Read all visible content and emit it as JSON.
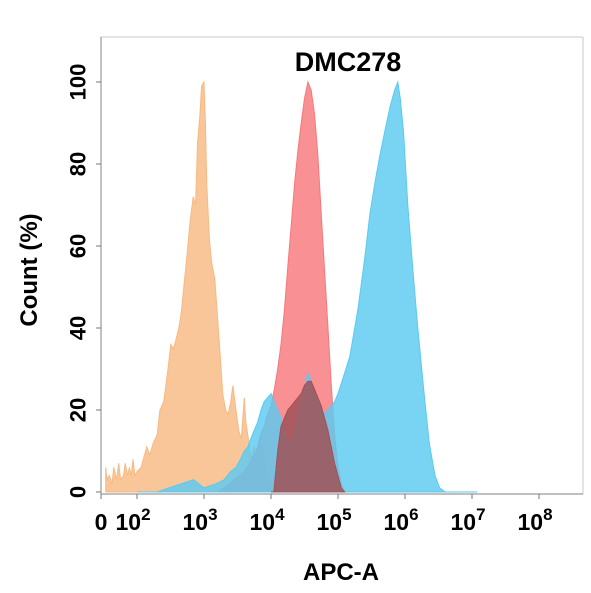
{
  "chart_data": {
    "type": "area",
    "title": "DMC278",
    "xlabel": "APC-A",
    "ylabel": "Count  (%)",
    "x_scale": "log",
    "xlim": [
      0,
      100000000
    ],
    "ylim": [
      0,
      110
    ],
    "y_ticks": [
      "0",
      "20",
      "40",
      "60",
      "80",
      "100"
    ],
    "x_ticks": [
      {
        "value": 0,
        "base": "0",
        "exp": ""
      },
      {
        "value": 100,
        "base": "10",
        "exp": "2"
      },
      {
        "value": 1000,
        "base": "10",
        "exp": "3"
      },
      {
        "value": 10000,
        "base": "10",
        "exp": "4"
      },
      {
        "value": 100000,
        "base": "10",
        "exp": "5"
      },
      {
        "value": 1000000,
        "base": "10",
        "exp": "6"
      },
      {
        "value": 10000000,
        "base": "10",
        "exp": "7"
      },
      {
        "value": 100000000,
        "base": "10",
        "exp": "8"
      }
    ],
    "legend": "none",
    "grid": false,
    "series": [
      {
        "color": "#f8b982",
        "points": [
          [
            10,
            6
          ],
          [
            11,
            3
          ],
          [
            13,
            4
          ],
          [
            16,
            2
          ],
          [
            18,
            6
          ],
          [
            22,
            3
          ],
          [
            26,
            7
          ],
          [
            30,
            3
          ],
          [
            37,
            4
          ],
          [
            42,
            7
          ],
          [
            50,
            4
          ],
          [
            57,
            6
          ],
          [
            65,
            4
          ],
          [
            75,
            8
          ],
          [
            85,
            4
          ],
          [
            100,
            5
          ],
          [
            115,
            6
          ],
          [
            140,
            11
          ],
          [
            155,
            9
          ],
          [
            175,
            12
          ],
          [
            200,
            14
          ],
          [
            220,
            20
          ],
          [
            250,
            22
          ],
          [
            290,
            30
          ],
          [
            320,
            36
          ],
          [
            350,
            35
          ],
          [
            380,
            37
          ],
          [
            420,
            40
          ],
          [
            460,
            44
          ],
          [
            500,
            50
          ],
          [
            560,
            58
          ],
          [
            620,
            66
          ],
          [
            690,
            72
          ],
          [
            750,
            70
          ],
          [
            800,
            85
          ],
          [
            870,
            92
          ],
          [
            920,
            99
          ],
          [
            1000,
            100
          ],
          [
            1050,
            90
          ],
          [
            1100,
            75
          ],
          [
            1200,
            62
          ],
          [
            1300,
            56
          ],
          [
            1450,
            52
          ],
          [
            1600,
            42
          ],
          [
            1750,
            33
          ],
          [
            1900,
            24
          ],
          [
            2100,
            20
          ],
          [
            2300,
            19
          ],
          [
            2500,
            22
          ],
          [
            2700,
            26
          ],
          [
            3000,
            20
          ],
          [
            3300,
            15
          ],
          [
            3600,
            13
          ],
          [
            4000,
            23
          ],
          [
            4200,
            17
          ],
          [
            4600,
            13
          ],
          [
            5000,
            8
          ],
          [
            5600,
            11
          ],
          [
            6300,
            9
          ],
          [
            7000,
            13
          ],
          [
            7600,
            11
          ],
          [
            8500,
            4
          ],
          [
            10000,
            2
          ],
          [
            13000,
            0
          ]
        ]
      },
      {
        "color": "#f6787c",
        "points": [
          [
            1000,
            0
          ],
          [
            1600,
            0
          ],
          [
            2000,
            1
          ],
          [
            2400,
            2
          ],
          [
            2800,
            3
          ],
          [
            3400,
            4
          ],
          [
            4000,
            5
          ],
          [
            4800,
            7
          ],
          [
            5600,
            9
          ],
          [
            6300,
            11
          ],
          [
            7000,
            14
          ],
          [
            7900,
            16
          ],
          [
            8900,
            19
          ],
          [
            10000,
            21
          ],
          [
            11200,
            25
          ],
          [
            12600,
            30
          ],
          [
            14100,
            36
          ],
          [
            15800,
            44
          ],
          [
            17800,
            55
          ],
          [
            20000,
            65
          ],
          [
            22400,
            75
          ],
          [
            25100,
            83
          ],
          [
            28200,
            90
          ],
          [
            31600,
            96
          ],
          [
            35500,
            100
          ],
          [
            39800,
            98
          ],
          [
            44700,
            92
          ],
          [
            50100,
            82
          ],
          [
            56200,
            68
          ],
          [
            63100,
            54
          ],
          [
            70800,
            40
          ],
          [
            79400,
            26
          ],
          [
            89100,
            14
          ],
          [
            100000,
            6
          ],
          [
            112000,
            2
          ],
          [
            125900,
            0
          ]
        ]
      },
      {
        "color": "#5cc9f0",
        "points": [
          [
            100,
            0
          ],
          [
            200,
            0
          ],
          [
            300,
            1
          ],
          [
            450,
            2
          ],
          [
            700,
            3
          ],
          [
            1000,
            1
          ],
          [
            1500,
            2
          ],
          [
            2000,
            3
          ],
          [
            2500,
            5
          ],
          [
            3000,
            6
          ],
          [
            3500,
            8
          ],
          [
            4000,
            10
          ],
          [
            4500,
            11
          ],
          [
            5000,
            13
          ],
          [
            5600,
            15
          ],
          [
            6300,
            17
          ],
          [
            7100,
            20
          ],
          [
            7900,
            22
          ],
          [
            8900,
            23
          ],
          [
            10000,
            24
          ],
          [
            11200,
            22
          ],
          [
            12600,
            20
          ],
          [
            14100,
            18
          ],
          [
            15800,
            15
          ],
          [
            17800,
            13
          ],
          [
            20000,
            12
          ],
          [
            22400,
            15
          ],
          [
            25100,
            18
          ],
          [
            28200,
            22
          ],
          [
            31600,
            25
          ],
          [
            35500,
            29
          ],
          [
            39800,
            27
          ],
          [
            44700,
            24
          ],
          [
            50100,
            22
          ],
          [
            56200,
            20
          ],
          [
            63100,
            19
          ],
          [
            70800,
            20
          ],
          [
            79400,
            21
          ],
          [
            89100,
            22
          ],
          [
            100000,
            24
          ],
          [
            120000,
            28
          ],
          [
            150000,
            33
          ],
          [
            200000,
            45
          ],
          [
            250000,
            57
          ],
          [
            300000,
            68
          ],
          [
            360000,
            76
          ],
          [
            420000,
            82
          ],
          [
            500000,
            88
          ],
          [
            600000,
            94
          ],
          [
            700000,
            98
          ],
          [
            780000,
            100
          ],
          [
            850000,
            96
          ],
          [
            950000,
            88
          ],
          [
            1100000,
            70
          ],
          [
            1300000,
            55
          ],
          [
            1550000,
            40
          ],
          [
            1900000,
            25
          ],
          [
            2300000,
            12
          ],
          [
            2800000,
            4
          ],
          [
            3300000,
            1
          ],
          [
            4000000,
            0
          ],
          [
            12000000,
            0
          ]
        ]
      },
      {
        "color": "#a05257",
        "points": [
          [
            10000,
            0
          ],
          [
            11000,
            0
          ],
          [
            12600,
            10
          ],
          [
            14100,
            16
          ],
          [
            15800,
            18
          ],
          [
            17800,
            20
          ],
          [
            20000,
            21
          ],
          [
            22400,
            22
          ],
          [
            25100,
            23
          ],
          [
            28200,
            24
          ],
          [
            31600,
            26
          ],
          [
            35500,
            27
          ],
          [
            39800,
            27
          ],
          [
            44700,
            25
          ],
          [
            50100,
            23
          ],
          [
            56200,
            21
          ],
          [
            63100,
            18
          ],
          [
            70800,
            15
          ],
          [
            79400,
            11
          ],
          [
            89100,
            7
          ],
          [
            100000,
            4
          ],
          [
            112000,
            1
          ],
          [
            125900,
            0
          ]
        ]
      }
    ]
  }
}
